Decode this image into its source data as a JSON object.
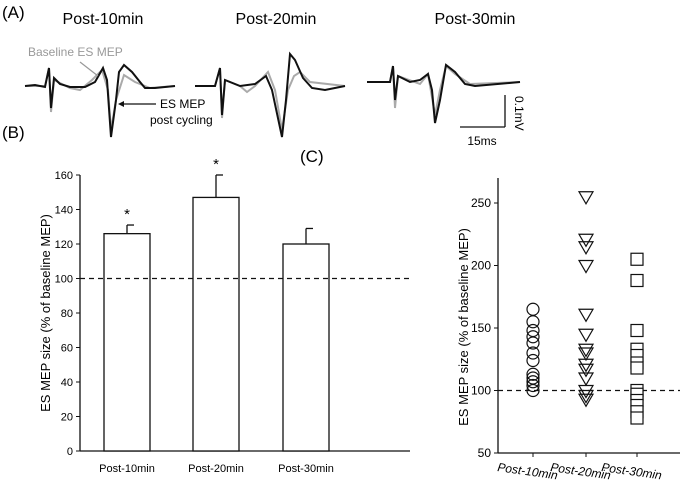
{
  "panel_labels": {
    "a": "(A)",
    "b": "(B)",
    "c": "(C)"
  },
  "traces": {
    "titles": [
      "Post-10min",
      "Post-20min",
      "Post-30min"
    ],
    "baseline_label": "Baseline ES MEP",
    "post_label_1": "ES MEP",
    "post_label_2": "post cycling",
    "scale_v": "0.1mV",
    "scale_h": "15ms",
    "colors": {
      "baseline": "#aaaaaa",
      "post": "#111111"
    }
  },
  "chart_data": [
    {
      "type": "bar",
      "categories": [
        "Post-10min",
        "Post-20min",
        "Post-30min"
      ],
      "values": [
        126,
        147,
        120
      ],
      "errors": [
        5,
        13,
        9
      ],
      "significance": [
        "*",
        "*",
        ""
      ],
      "ylabel": "ES MEP size (% of baseline MEP)",
      "ylim": [
        0,
        160
      ],
      "yticks": [
        0,
        20,
        40,
        60,
        80,
        100,
        120,
        140,
        160
      ],
      "reference_line": 100
    },
    {
      "type": "scatter",
      "categories": [
        "Post-10min",
        "Post-20min",
        "Post-30min"
      ],
      "series": [
        {
          "marker": "circle",
          "values": [
            165,
            155,
            148,
            143,
            138,
            130,
            124,
            113,
            110,
            107,
            104,
            100
          ]
        },
        {
          "marker": "triangle-down",
          "values": [
            255,
            221,
            215,
            200,
            161,
            145,
            133,
            130,
            121,
            117,
            110,
            100,
            96,
            93
          ]
        },
        {
          "marker": "square",
          "values": [
            205,
            188,
            148,
            133,
            128,
            122,
            118,
            100,
            97,
            92,
            88,
            83,
            78
          ]
        }
      ],
      "ylabel": "ES MEP size (% of baseline MEP)",
      "ylim": [
        50,
        270
      ],
      "yticks": [
        50,
        100,
        150,
        200,
        250
      ],
      "reference_line": 100
    }
  ]
}
